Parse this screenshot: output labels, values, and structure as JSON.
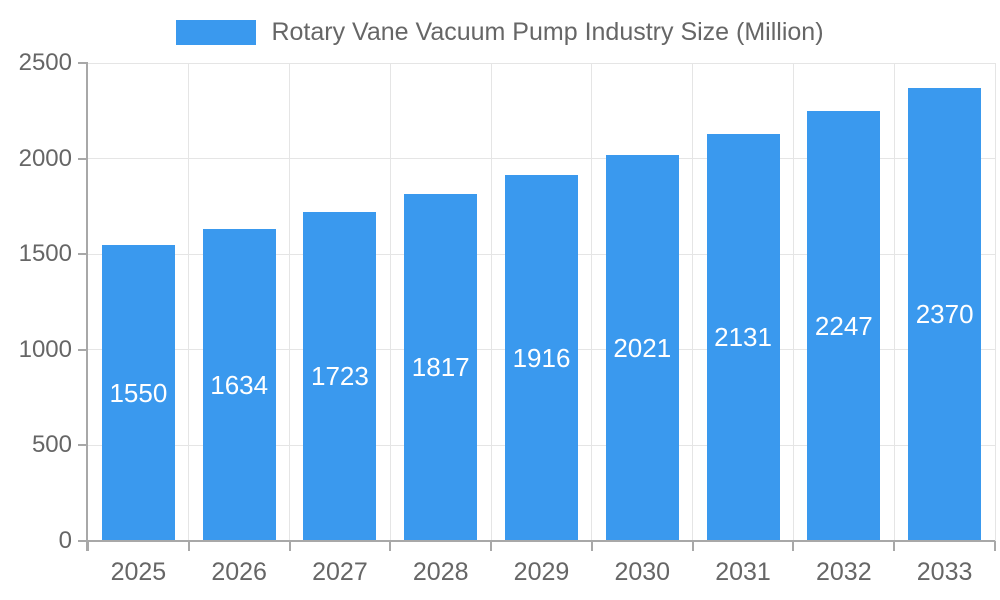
{
  "legend": {
    "label": "Rotary Vane Vacuum Pump Industry Size (Million)"
  },
  "colors": {
    "bar": "#3A99EE",
    "grid": "#e5e5e5",
    "axis": "#a8a8a8",
    "tick_text": "#666666",
    "value_text": "#ffffff"
  },
  "chart_data": {
    "type": "bar",
    "categories": [
      "2025",
      "2026",
      "2027",
      "2028",
      "2029",
      "2030",
      "2031",
      "2032",
      "2033"
    ],
    "values": [
      1550,
      1634,
      1723,
      1817,
      1916,
      2021,
      2131,
      2247,
      2370
    ],
    "title": "Rotary Vane Vacuum Pump Industry Size (Million)",
    "xlabel": "",
    "ylabel": "",
    "ylim": [
      0,
      2500
    ],
    "yticks": [
      0,
      500,
      1000,
      1500,
      2000,
      2500
    ],
    "legend_position": "top",
    "grid": true,
    "value_labels": "centered-inside-bars"
  }
}
